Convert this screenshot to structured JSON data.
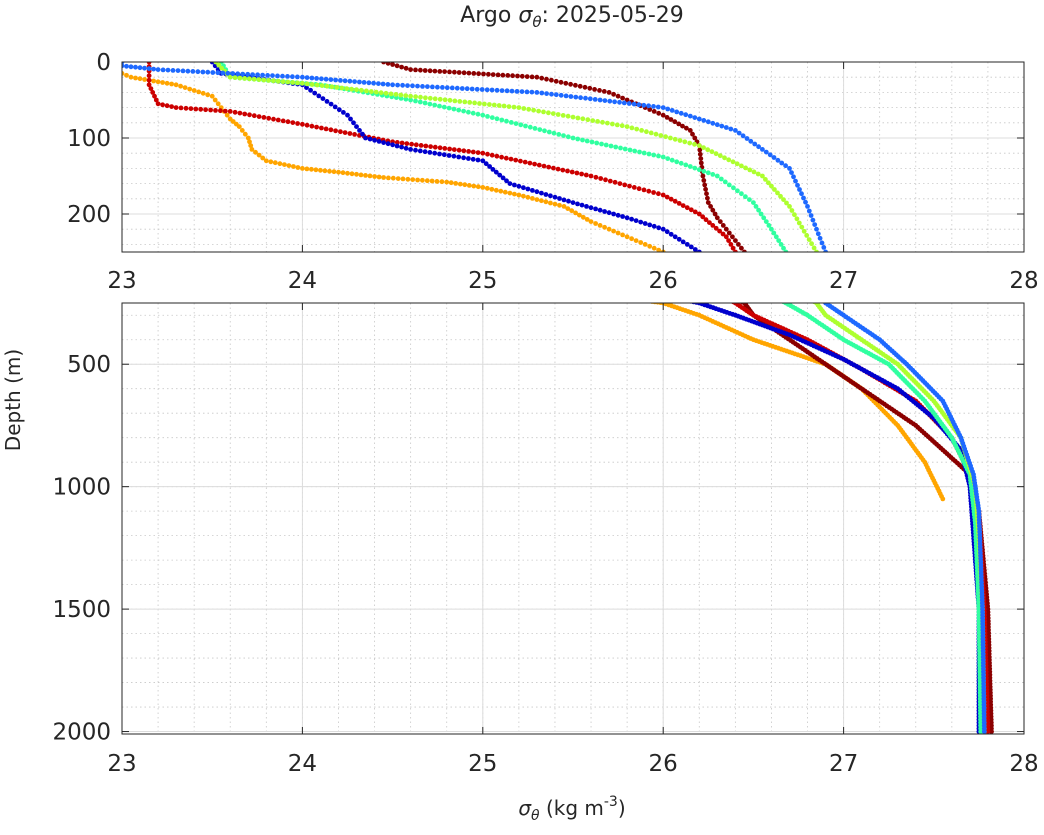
{
  "chart_data": {
    "type": "scatter",
    "title_prefix": "Argo ",
    "title_symbol": "σ",
    "title_subscript": "θ",
    "title_suffix": ": 2025-05-29",
    "xlabel_symbol": "σ",
    "xlabel_subscript": "θ",
    "xlabel_units": " (kg m",
    "xlabel_exponent": "-3",
    "xlabel_close": ")",
    "ylabel": "Depth (m)",
    "xlim": [
      23,
      28
    ],
    "x_ticks": [
      "23",
      "24",
      "25",
      "26",
      "27",
      "28"
    ],
    "panels": [
      {
        "name": "upper",
        "ylim": [
          0,
          250
        ],
        "y_ticks": [
          "0",
          "100",
          "200"
        ],
        "y_tick_values": [
          0,
          100,
          200
        ],
        "y_minor_step": 20
      },
      {
        "name": "lower",
        "ylim": [
          250,
          2010
        ],
        "y_ticks": [
          "500",
          "1000",
          "1500",
          "2000"
        ],
        "y_tick_values": [
          500,
          1000,
          1500,
          2000
        ],
        "y_minor_step": 100
      }
    ],
    "series": [
      {
        "name": "profile-orange",
        "color": "#ffa500",
        "points": [
          [
            23.0,
            15
          ],
          [
            23.05,
            20
          ],
          [
            23.3,
            30
          ],
          [
            23.5,
            45
          ],
          [
            23.55,
            60
          ],
          [
            23.6,
            75
          ],
          [
            23.65,
            85
          ],
          [
            23.7,
            100
          ],
          [
            23.72,
            115
          ],
          [
            23.8,
            130
          ],
          [
            24.0,
            140
          ],
          [
            24.2,
            145
          ],
          [
            24.45,
            152
          ],
          [
            24.8,
            158
          ],
          [
            25.0,
            165
          ],
          [
            25.2,
            175
          ],
          [
            25.45,
            190
          ],
          [
            25.6,
            210
          ],
          [
            25.8,
            230
          ],
          [
            26.0,
            250
          ],
          [
            26.2,
            300
          ],
          [
            26.5,
            400
          ],
          [
            26.9,
            500
          ],
          [
            27.1,
            600
          ],
          [
            27.3,
            750
          ],
          [
            27.45,
            900
          ],
          [
            27.55,
            1050
          ]
        ]
      },
      {
        "name": "profile-dark-red",
        "color": "#8b0000",
        "points": [
          [
            24.45,
            0
          ],
          [
            24.6,
            10
          ],
          [
            25.3,
            20
          ],
          [
            25.7,
            40
          ],
          [
            26.0,
            70
          ],
          [
            26.15,
            90
          ],
          [
            26.2,
            110
          ],
          [
            26.22,
            150
          ],
          [
            26.25,
            185
          ],
          [
            26.3,
            205
          ],
          [
            26.4,
            235
          ],
          [
            26.45,
            250
          ],
          [
            26.5,
            300
          ],
          [
            26.6,
            350
          ],
          [
            26.8,
            450
          ],
          [
            27.0,
            550
          ],
          [
            27.2,
            650
          ],
          [
            27.4,
            750
          ],
          [
            27.55,
            850
          ],
          [
            27.7,
            950
          ],
          [
            27.75,
            1100
          ],
          [
            27.8,
            1500
          ],
          [
            27.82,
            2000
          ]
        ]
      },
      {
        "name": "profile-red",
        "color": "#cc0000",
        "points": [
          [
            23.15,
            0
          ],
          [
            23.15,
            30
          ],
          [
            23.2,
            55
          ],
          [
            23.3,
            60
          ],
          [
            23.6,
            65
          ],
          [
            24.0,
            82
          ],
          [
            24.5,
            105
          ],
          [
            25.0,
            120
          ],
          [
            25.6,
            150
          ],
          [
            26.0,
            175
          ],
          [
            26.2,
            200
          ],
          [
            26.35,
            230
          ],
          [
            26.4,
            250
          ],
          [
            26.5,
            300
          ],
          [
            26.8,
            400
          ],
          [
            27.1,
            520
          ],
          [
            27.4,
            650
          ],
          [
            27.6,
            800
          ],
          [
            27.7,
            950
          ],
          [
            27.75,
            1100
          ],
          [
            27.78,
            1500
          ],
          [
            27.8,
            2000
          ]
        ]
      },
      {
        "name": "profile-navy",
        "color": "#0000cd",
        "points": [
          [
            23.5,
            0
          ],
          [
            23.55,
            15
          ],
          [
            24.0,
            30
          ],
          [
            24.25,
            70
          ],
          [
            24.35,
            100
          ],
          [
            24.6,
            115
          ],
          [
            25.0,
            130
          ],
          [
            25.15,
            160
          ],
          [
            25.5,
            185
          ],
          [
            25.8,
            205
          ],
          [
            26.0,
            220
          ],
          [
            26.2,
            250
          ],
          [
            26.4,
            300
          ],
          [
            26.7,
            380
          ],
          [
            27.0,
            480
          ],
          [
            27.3,
            600
          ],
          [
            27.5,
            720
          ],
          [
            27.65,
            850
          ],
          [
            27.7,
            1000
          ],
          [
            27.72,
            1200
          ],
          [
            27.75,
            1500
          ],
          [
            27.75,
            2000
          ]
        ]
      },
      {
        "name": "profile-cyan",
        "color": "#30ffa0",
        "points": [
          [
            23.55,
            0
          ],
          [
            23.6,
            20
          ],
          [
            24.1,
            30
          ],
          [
            24.6,
            50
          ],
          [
            25.0,
            70
          ],
          [
            25.5,
            100
          ],
          [
            26.0,
            125
          ],
          [
            26.3,
            150
          ],
          [
            26.5,
            185
          ],
          [
            26.6,
            220
          ],
          [
            26.68,
            250
          ],
          [
            26.8,
            300
          ],
          [
            27.0,
            400
          ],
          [
            27.25,
            500
          ],
          [
            27.45,
            650
          ],
          [
            27.6,
            800
          ],
          [
            27.7,
            950
          ],
          [
            27.73,
            1150
          ],
          [
            27.75,
            1500
          ],
          [
            27.76,
            2000
          ]
        ]
      },
      {
        "name": "profile-lime",
        "color": "#adff2f",
        "points": [
          [
            23.52,
            0
          ],
          [
            23.6,
            20
          ],
          [
            24.0,
            28
          ],
          [
            24.6,
            45
          ],
          [
            25.2,
            60
          ],
          [
            25.8,
            85
          ],
          [
            26.2,
            110
          ],
          [
            26.55,
            150
          ],
          [
            26.7,
            190
          ],
          [
            26.85,
            250
          ],
          [
            26.9,
            300
          ],
          [
            27.1,
            400
          ],
          [
            27.3,
            500
          ],
          [
            27.5,
            650
          ],
          [
            27.65,
            800
          ],
          [
            27.73,
            1000
          ],
          [
            27.75,
            1200
          ],
          [
            27.77,
            1500
          ],
          [
            27.78,
            2000
          ]
        ]
      },
      {
        "name": "profile-azure",
        "color": "#1e69ff",
        "points": [
          [
            23.0,
            0
          ],
          [
            23.0,
            5
          ],
          [
            23.2,
            10
          ],
          [
            24.0,
            20
          ],
          [
            24.5,
            30
          ],
          [
            25.3,
            40
          ],
          [
            26.0,
            60
          ],
          [
            26.4,
            90
          ],
          [
            26.7,
            140
          ],
          [
            26.8,
            190
          ],
          [
            26.9,
            250
          ],
          [
            27.0,
            300
          ],
          [
            27.2,
            400
          ],
          [
            27.35,
            500
          ],
          [
            27.55,
            650
          ],
          [
            27.65,
            800
          ],
          [
            27.72,
            950
          ],
          [
            27.75,
            1100
          ],
          [
            27.77,
            1500
          ],
          [
            27.78,
            2000
          ]
        ]
      }
    ]
  }
}
